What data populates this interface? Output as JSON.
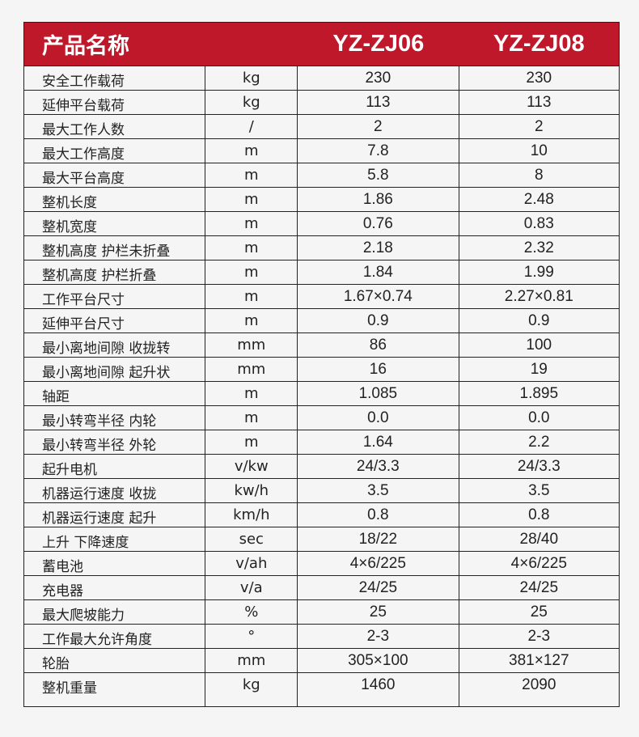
{
  "header": {
    "name": "产品名称",
    "models": [
      "YZ-ZJ06",
      "YZ-ZJ08"
    ]
  },
  "colors": {
    "header_bg": "#c0182b",
    "background": "#f5f5f5"
  },
  "rows": [
    {
      "label": "安全工作载荷",
      "unit": "kg",
      "a": "230",
      "b": "230"
    },
    {
      "label": "延伸平台载荷",
      "unit": "kg",
      "a": "113",
      "b": "113"
    },
    {
      "label": "最大工作人数",
      "unit": "/",
      "a": "2",
      "b": "2"
    },
    {
      "label": "最大工作高度",
      "unit": "m",
      "a": "7.8",
      "b": "10"
    },
    {
      "label": "最大平台高度",
      "unit": "m",
      "a": "5.8",
      "b": "8"
    },
    {
      "label": "整机长度",
      "unit": "m",
      "a": "1.86",
      "b": "2.48"
    },
    {
      "label": "整机宽度",
      "unit": "m",
      "a": "0.76",
      "b": "0.83"
    },
    {
      "label": "整机高度 护栏未折叠",
      "unit": "m",
      "a": "2.18",
      "b": "2.32"
    },
    {
      "label": "整机高度 护栏折叠",
      "unit": "m",
      "a": "1.84",
      "b": "1.99"
    },
    {
      "label": "工作平台尺寸",
      "unit": "m",
      "a": "1.67×0.74",
      "b": "2.27×0.81"
    },
    {
      "label": "延伸平台尺寸",
      "unit": "m",
      "a": "0.9",
      "b": "0.9"
    },
    {
      "label": "最小离地间隙 收拢转",
      "unit": "mm",
      "a": "86",
      "b": "100"
    },
    {
      "label": "最小离地间隙 起升状",
      "unit": "mm",
      "a": "16",
      "b": "19"
    },
    {
      "label": "轴距",
      "unit": "m",
      "a": "1.085",
      "b": "1.895"
    },
    {
      "label": "最小转弯半径 内轮",
      "unit": "m",
      "a": "0.0",
      "b": "0.0"
    },
    {
      "label": "最小转弯半径 外轮",
      "unit": "m",
      "a": "1.64",
      "b": "2.2"
    },
    {
      "label": "起升电机",
      "unit": "v/kw",
      "a": "24/3.3",
      "b": "24/3.3"
    },
    {
      "label": "机器运行速度 收拢",
      "unit": "kw/h",
      "a": "3.5",
      "b": "3.5"
    },
    {
      "label": "机器运行速度 起升",
      "unit": "km/h",
      "a": "0.8",
      "b": "0.8"
    },
    {
      "label": "上升 下降速度",
      "unit": "sec",
      "a": "18/22",
      "b": "28/40"
    },
    {
      "label": "蓄电池",
      "unit": "v/ah",
      "a": "4×6/225",
      "b": "4×6/225"
    },
    {
      "label": "充电器",
      "unit": "v/a",
      "a": "24/25",
      "b": "24/25"
    },
    {
      "label": "最大爬坡能力",
      "unit": "%",
      "a": "25",
      "b": "25"
    },
    {
      "label": "工作最大允许角度",
      "unit": "°",
      "a": "2-3",
      "b": "2-3"
    },
    {
      "label": "轮胎",
      "unit": "mm",
      "a": "305×100",
      "b": "381×127"
    },
    {
      "label": "整机重量",
      "unit": "kg",
      "a": "1460",
      "b": "2090"
    }
  ]
}
